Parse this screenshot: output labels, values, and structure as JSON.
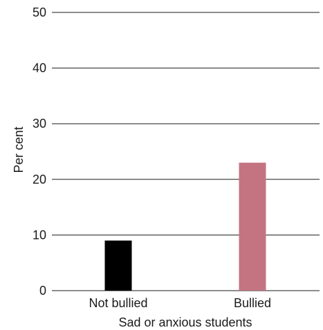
{
  "chart_data": {
    "type": "bar",
    "categories": [
      "Not bullied",
      "Bullied"
    ],
    "values": [
      9,
      23
    ],
    "colors": [
      "#000000",
      "#c47481"
    ],
    "xlabel": "Sad or anxious students",
    "ylabel": "Per cent",
    "ylim": [
      0,
      50
    ],
    "yticks": [
      0,
      10,
      20,
      30,
      40,
      50
    ],
    "grid": true
  }
}
